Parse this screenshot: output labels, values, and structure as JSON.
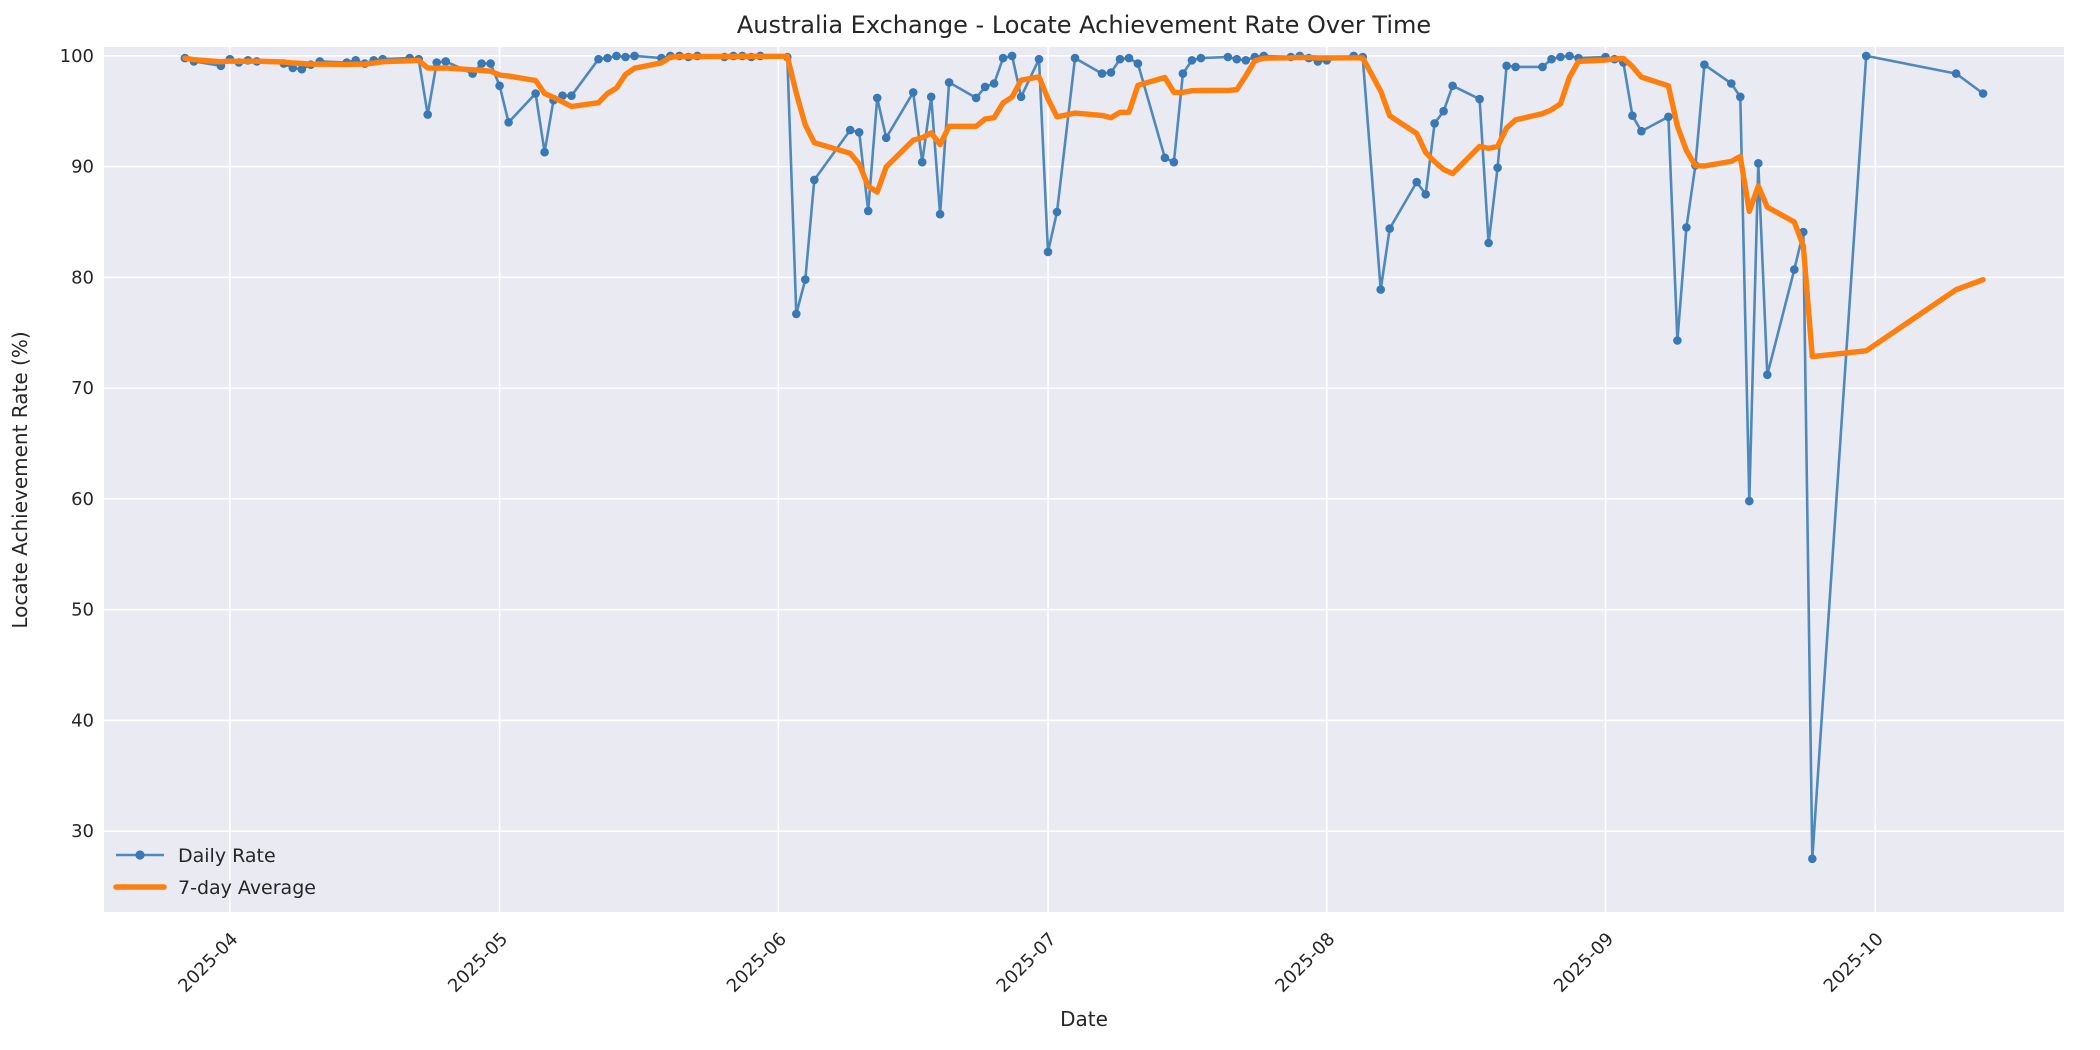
{
  "chart_data": {
    "type": "line",
    "title": "Australia Exchange - Locate Achievement Rate Over Time",
    "xlabel": "Date",
    "ylabel": "Locate Achievement Rate (%)",
    "xlim": [
      "2025-03-18",
      "2025-10-22"
    ],
    "ylim": [
      22.7,
      100.8
    ],
    "grid": true,
    "legend_position": "lower left",
    "plot_background": "#eaeaf2",
    "figure_background": "#ffffff",
    "grid_color": "#ffffff",
    "text_color": "#262626",
    "x_ticks": [
      {
        "date": "2025-04-01",
        "label": "2025-04"
      },
      {
        "date": "2025-05-01",
        "label": "2025-05"
      },
      {
        "date": "2025-06-01",
        "label": "2025-06"
      },
      {
        "date": "2025-07-01",
        "label": "2025-07"
      },
      {
        "date": "2025-08-01",
        "label": "2025-08"
      },
      {
        "date": "2025-09-01",
        "label": "2025-09"
      },
      {
        "date": "2025-10-01",
        "label": "2025-10"
      }
    ],
    "y_ticks": [
      30,
      40,
      50,
      60,
      70,
      80,
      90,
      100
    ],
    "series": [
      {
        "name": "Daily Rate",
        "style": "line+markers",
        "color": "#4f89bc",
        "marker_color": "#3878b4",
        "dates": [
          "2025-03-27",
          "2025-03-28",
          "2025-03-31",
          "2025-04-01",
          "2025-04-02",
          "2025-04-03",
          "2025-04-04",
          "2025-04-07",
          "2025-04-08",
          "2025-04-09",
          "2025-04-10",
          "2025-04-11",
          "2025-04-14",
          "2025-04-15",
          "2025-04-16",
          "2025-04-17",
          "2025-04-18",
          "2025-04-21",
          "2025-04-22",
          "2025-04-23",
          "2025-04-24",
          "2025-04-25",
          "2025-04-28",
          "2025-04-29",
          "2025-04-30",
          "2025-05-01",
          "2025-05-02",
          "2025-05-05",
          "2025-05-06",
          "2025-05-07",
          "2025-05-08",
          "2025-05-09",
          "2025-05-12",
          "2025-05-13",
          "2025-05-14",
          "2025-05-15",
          "2025-05-16",
          "2025-05-19",
          "2025-05-20",
          "2025-05-21",
          "2025-05-22",
          "2025-05-23",
          "2025-05-26",
          "2025-05-27",
          "2025-05-28",
          "2025-05-29",
          "2025-05-30",
          "2025-06-02",
          "2025-06-03",
          "2025-06-04",
          "2025-06-05",
          "2025-06-09",
          "2025-06-10",
          "2025-06-11",
          "2025-06-12",
          "2025-06-13",
          "2025-06-16",
          "2025-06-17",
          "2025-06-18",
          "2025-06-19",
          "2025-06-20",
          "2025-06-23",
          "2025-06-24",
          "2025-06-25",
          "2025-06-26",
          "2025-06-27",
          "2025-06-28",
          "2025-06-30",
          "2025-07-01",
          "2025-07-02",
          "2025-07-04",
          "2025-07-07",
          "2025-07-08",
          "2025-07-09",
          "2025-07-10",
          "2025-07-11",
          "2025-07-14",
          "2025-07-15",
          "2025-07-16",
          "2025-07-17",
          "2025-07-18",
          "2025-07-21",
          "2025-07-22",
          "2025-07-23",
          "2025-07-24",
          "2025-07-25",
          "2025-07-28",
          "2025-07-29",
          "2025-07-30",
          "2025-07-31",
          "2025-08-01",
          "2025-08-04",
          "2025-08-05",
          "2025-08-07",
          "2025-08-08",
          "2025-08-11",
          "2025-08-12",
          "2025-08-13",
          "2025-08-14",
          "2025-08-15",
          "2025-08-18",
          "2025-08-19",
          "2025-08-20",
          "2025-08-21",
          "2025-08-22",
          "2025-08-25",
          "2025-08-26",
          "2025-08-27",
          "2025-08-28",
          "2025-08-29",
          "2025-09-01",
          "2025-09-02",
          "2025-09-03",
          "2025-09-04",
          "2025-09-05",
          "2025-09-08",
          "2025-09-09",
          "2025-09-10",
          "2025-09-11",
          "2025-09-12",
          "2025-09-15",
          "2025-09-16",
          "2025-09-17",
          "2025-09-18",
          "2025-09-19",
          "2025-09-22",
          "2025-09-23",
          "2025-09-24",
          "2025-09-30",
          "2025-10-10",
          "2025-10-13"
        ],
        "values": [
          99.8,
          99.5,
          99.1,
          99.7,
          99.4,
          99.6,
          99.5,
          99.3,
          98.9,
          98.8,
          99.2,
          99.5,
          99.4,
          99.6,
          99.3,
          99.6,
          99.7,
          99.8,
          99.7,
          94.7,
          99.4,
          99.5,
          98.4,
          99.3,
          99.3,
          97.3,
          94.0,
          96.6,
          91.3,
          96.0,
          96.4,
          96.4,
          99.7,
          99.8,
          100.0,
          99.9,
          100.0,
          99.8,
          100.0,
          100.0,
          99.9,
          100.0,
          99.9,
          100.0,
          100.0,
          99.9,
          100.0,
          99.9,
          76.7,
          79.8,
          88.8,
          93.3,
          93.1,
          86.0,
          96.2,
          92.6,
          96.7,
          90.4,
          96.3,
          85.7,
          97.6,
          96.2,
          97.2,
          97.5,
          99.8,
          100.0,
          96.3,
          99.7,
          82.3,
          85.9,
          99.8,
          98.4,
          98.5,
          99.7,
          99.8,
          99.3,
          90.8,
          90.4,
          98.4,
          99.6,
          99.8,
          99.9,
          99.7,
          99.6,
          99.9,
          100.0,
          99.9,
          100.0,
          99.8,
          99.5,
          99.6,
          100.0,
          99.9,
          78.9,
          84.4,
          88.6,
          87.5,
          93.9,
          95.0,
          97.3,
          96.1,
          83.1,
          89.9,
          99.1,
          99.0,
          99.0,
          99.7,
          99.9,
          100.0,
          99.8,
          99.9,
          99.7,
          99.4,
          94.6,
          93.2,
          94.5,
          74.3,
          84.5,
          90.1,
          99.2,
          97.5,
          96.3,
          59.8,
          90.3,
          71.2,
          80.7,
          84.1,
          27.5,
          100.0,
          98.4,
          96.6
        ]
      },
      {
        "name": "7-day Average",
        "style": "line",
        "color": "#ff7f0e",
        "derived": "rolling mean of Daily Rate over 7 data points, min_periods 1"
      }
    ]
  }
}
